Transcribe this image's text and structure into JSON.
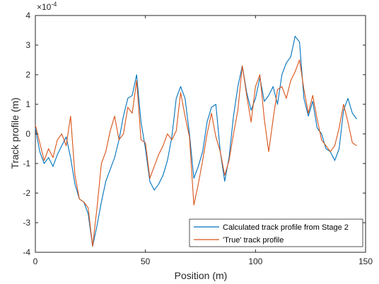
{
  "chart_data": {
    "type": "line",
    "xlabel": "Position (m)",
    "ylabel": "Track profile (m)",
    "y_exponent_label": "×10",
    "y_exponent_power": "-4",
    "xlim": [
      0,
      150
    ],
    "ylim": [
      -4,
      4
    ],
    "x_ticks": [
      0,
      50,
      100,
      150
    ],
    "y_ticks": [
      -4,
      -3,
      -2,
      -1,
      0,
      1,
      2,
      3,
      4
    ],
    "grid": false,
    "legend_position": "bottom-right",
    "x": [
      0,
      2,
      4,
      6,
      8,
      10,
      12,
      14,
      16,
      18,
      20,
      22,
      24,
      26,
      28,
      30,
      32,
      34,
      36,
      38,
      40,
      42,
      44,
      46,
      48,
      50,
      52,
      54,
      56,
      58,
      60,
      62,
      64,
      66,
      68,
      70,
      72,
      74,
      76,
      78,
      80,
      82,
      84,
      86,
      88,
      90,
      92,
      94,
      96,
      98,
      100,
      102,
      104,
      106,
      108,
      110,
      112,
      114,
      116,
      118,
      120,
      122,
      124,
      126,
      128,
      130,
      132,
      134,
      136,
      138,
      140,
      142,
      144,
      146
    ],
    "series": [
      {
        "name": "Calculated track profile from Stage 2",
        "color": "#0072BD",
        "values": [
          0.2,
          -0.6,
          -1.0,
          -0.8,
          -1.1,
          -0.7,
          -0.4,
          -0.1,
          -0.8,
          -1.7,
          -2.2,
          -2.3,
          -2.7,
          -3.8,
          -3.1,
          -2.3,
          -1.6,
          -1.2,
          -0.8,
          -0.2,
          0.6,
          1.2,
          1.3,
          2.0,
          0.4,
          -0.5,
          -1.6,
          -1.9,
          -1.7,
          -1.4,
          -0.9,
          -0.1,
          1.2,
          1.6,
          1.2,
          0.0,
          -1.5,
          -1.1,
          -0.6,
          0.4,
          0.9,
          1.0,
          -0.6,
          -1.6,
          -0.8,
          0.6,
          1.6,
          2.3,
          1.4,
          0.8,
          1.2,
          1.9,
          1.1,
          1.3,
          1.6,
          1.0,
          2.0,
          2.4,
          2.6,
          3.3,
          3.1,
          1.2,
          0.6,
          1.1,
          0.2,
          0.0,
          -0.5,
          -0.6,
          -0.9,
          -0.5,
          0.8,
          1.2,
          0.7,
          0.5
        ]
      },
      {
        "name": "'True' track profile",
        "color": "#D95319",
        "values": [
          0.3,
          -0.3,
          -0.9,
          -0.5,
          -0.8,
          -0.2,
          0.0,
          -0.4,
          0.6,
          -1.4,
          -2.2,
          -2.3,
          -2.5,
          -3.8,
          -2.5,
          -1.0,
          -0.6,
          0.1,
          0.6,
          -0.2,
          0.0,
          0.9,
          0.7,
          1.8,
          -0.2,
          -0.3,
          -1.5,
          -1.1,
          -0.7,
          -0.4,
          0.0,
          -0.2,
          0.1,
          1.4,
          0.6,
          -0.1,
          -2.4,
          -1.7,
          -0.9,
          0.0,
          0.7,
          -0.1,
          -0.6,
          -1.4,
          -0.9,
          0.0,
          0.8,
          2.3,
          1.3,
          0.4,
          1.6,
          2.0,
          0.5,
          -0.6,
          0.5,
          1.5,
          1.6,
          1.2,
          1.8,
          2.1,
          2.5,
          1.5,
          0.7,
          1.3,
          0.5,
          -0.2,
          -0.4,
          -0.6,
          -0.4,
          0.2,
          1.0,
          0.4,
          -0.3,
          -0.4
        ]
      }
    ]
  }
}
